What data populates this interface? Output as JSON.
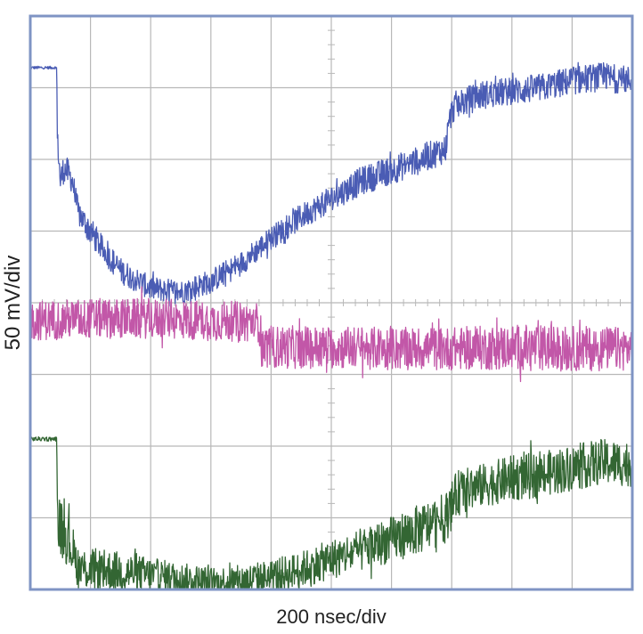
{
  "chart_data": {
    "type": "line",
    "xlabel": "200 nsec/div",
    "ylabel": "50 mV/div",
    "grid": true,
    "xlim": [
      0,
      10
    ],
    "ylim": [
      0,
      8
    ],
    "series": [
      {
        "color": "#4a5cb4",
        "x": [
          0.0,
          0.44,
          0.45,
          0.5,
          0.55,
          0.6,
          0.7,
          0.8,
          1.0,
          1.2,
          1.5,
          2.0,
          2.5,
          3.0,
          3.5,
          4.0,
          4.5,
          5.0,
          5.5,
          6.0,
          6.5,
          6.9,
          6.95,
          7.0,
          7.05,
          7.5,
          8.0,
          8.5,
          9.0,
          9.5,
          10.0
        ],
        "y": [
          7.28,
          7.28,
          6.3,
          5.7,
          5.85,
          5.85,
          5.7,
          5.25,
          5.0,
          4.75,
          4.45,
          4.2,
          4.15,
          4.3,
          4.55,
          4.9,
          5.2,
          5.45,
          5.7,
          5.85,
          6.0,
          6.15,
          6.5,
          6.65,
          6.75,
          6.9,
          6.95,
          7.0,
          7.1,
          7.15,
          7.1
        ],
        "noise": [
          0.02,
          0.02,
          0.15,
          0.2,
          0.2,
          0.2,
          0.18,
          0.18,
          0.2,
          0.18,
          0.18,
          0.17,
          0.17,
          0.17,
          0.17,
          0.17,
          0.18,
          0.18,
          0.2,
          0.2,
          0.2,
          0.2,
          0.2,
          0.2,
          0.2,
          0.2,
          0.2,
          0.2,
          0.2,
          0.2,
          0.2
        ]
      },
      {
        "color": "#c257a8",
        "x": [
          0.0,
          1.0,
          2.0,
          3.0,
          3.8,
          3.85,
          4.0,
          5.0,
          6.0,
          7.0,
          8.0,
          9.0,
          10.0
        ],
        "y": [
          3.75,
          3.78,
          3.78,
          3.75,
          3.73,
          3.4,
          3.38,
          3.38,
          3.36,
          3.36,
          3.38,
          3.36,
          3.36
        ],
        "noise": [
          0.28,
          0.28,
          0.28,
          0.28,
          0.28,
          0.3,
          0.3,
          0.3,
          0.3,
          0.3,
          0.32,
          0.32,
          0.3
        ]
      },
      {
        "color": "#336633",
        "x": [
          0.0,
          0.44,
          0.45,
          0.5,
          0.6,
          0.7,
          0.8,
          1.0,
          1.5,
          2.0,
          2.5,
          3.0,
          3.5,
          4.0,
          4.5,
          5.0,
          5.5,
          6.0,
          6.5,
          6.9,
          7.1,
          7.5,
          8.0,
          8.5,
          9.0,
          9.5,
          10.0
        ],
        "y": [
          2.1,
          2.1,
          1.1,
          0.85,
          0.75,
          0.55,
          0.3,
          0.28,
          0.25,
          0.2,
          0.15,
          0.1,
          0.12,
          0.18,
          0.28,
          0.42,
          0.55,
          0.7,
          0.85,
          1.0,
          1.35,
          1.45,
          1.55,
          1.6,
          1.7,
          1.78,
          1.75
        ],
        "noise": [
          0.03,
          0.03,
          0.3,
          0.4,
          0.4,
          0.35,
          0.3,
          0.3,
          0.28,
          0.25,
          0.22,
          0.22,
          0.22,
          0.24,
          0.25,
          0.28,
          0.3,
          0.32,
          0.35,
          0.35,
          0.32,
          0.3,
          0.32,
          0.32,
          0.32,
          0.32,
          0.32
        ]
      }
    ]
  },
  "colors": {
    "frame": "#7f94c4",
    "grid": "#b8b8b8",
    "background": "#ffffff"
  }
}
